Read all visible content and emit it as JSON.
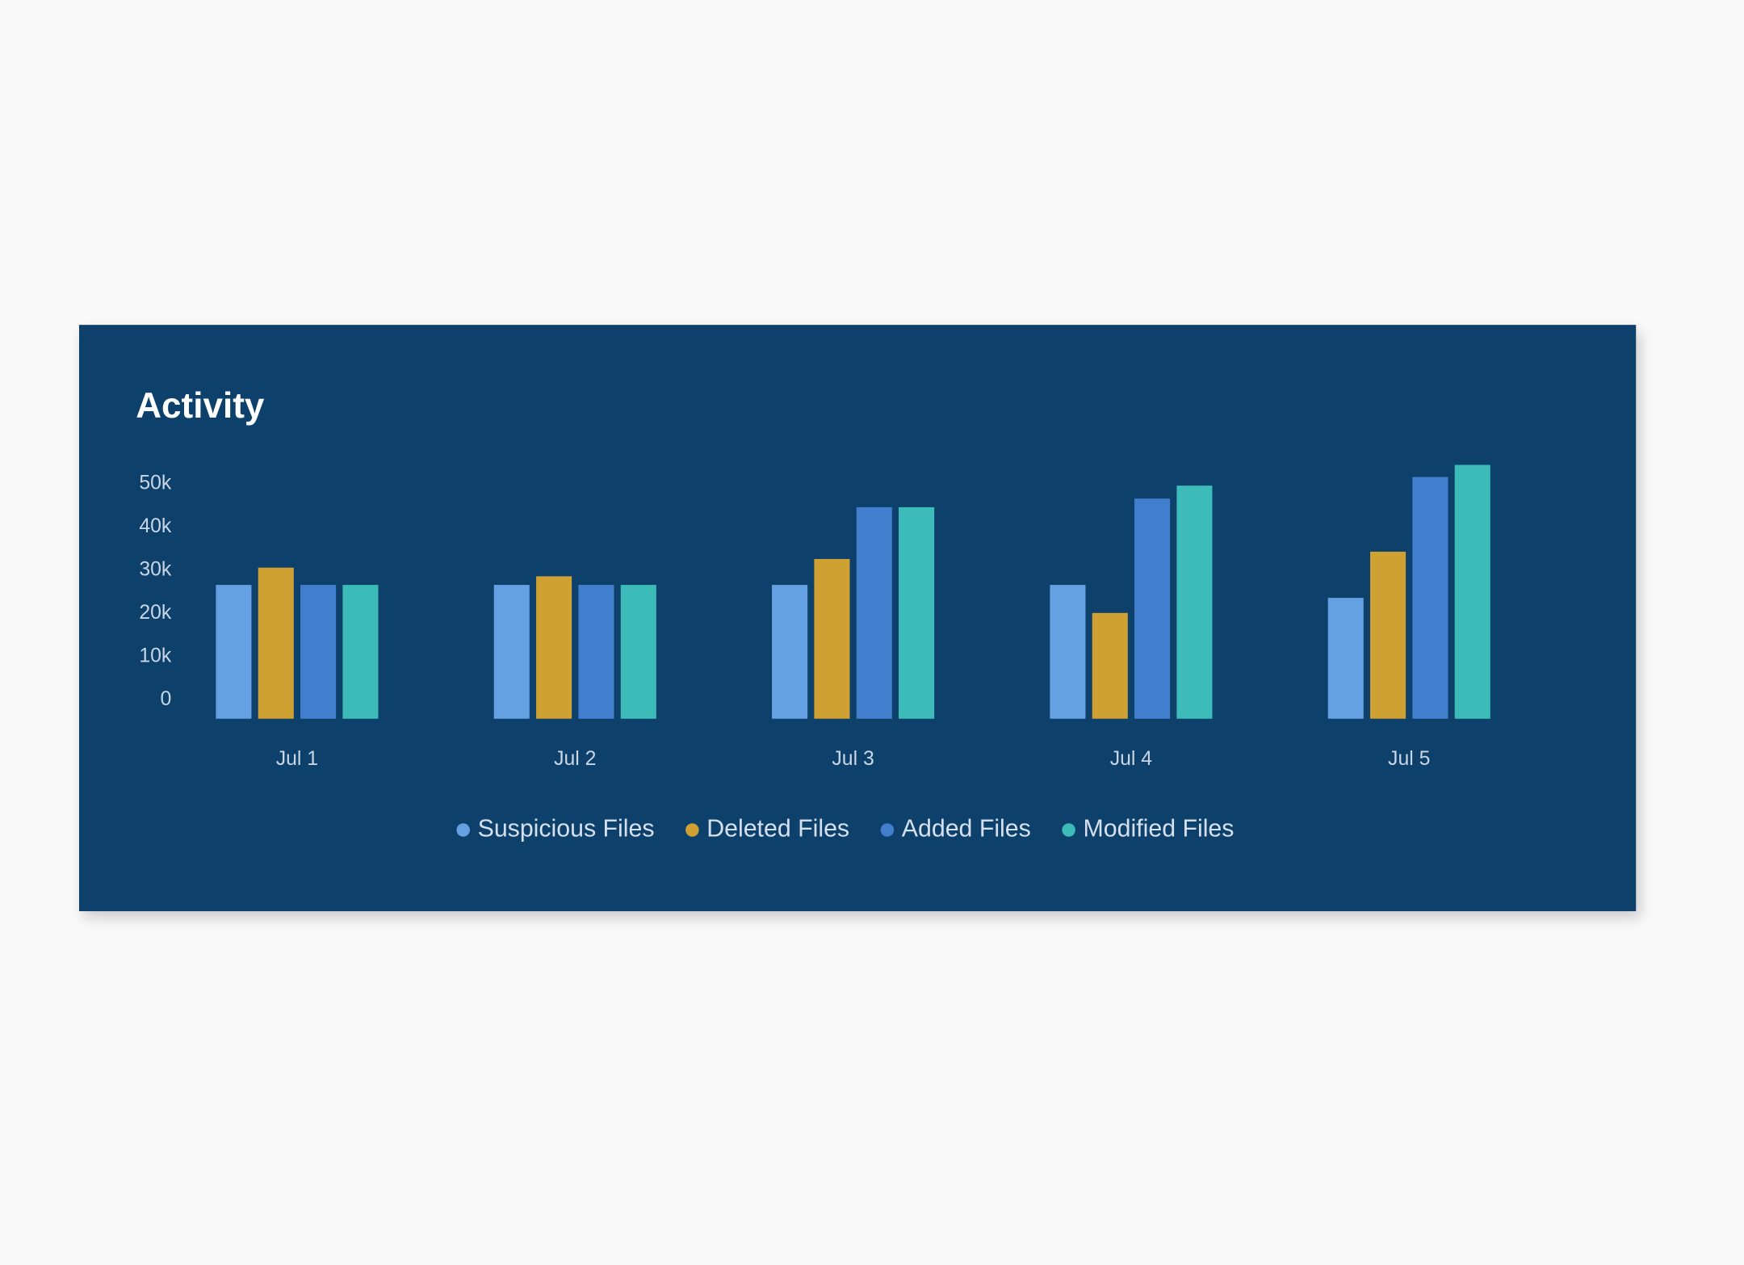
{
  "chart_data": {
    "type": "bar",
    "title": "Activity",
    "categories": [
      "Jul 1",
      "Jul 2",
      "Jul 3",
      "Jul 4",
      "Jul 5"
    ],
    "series": [
      {
        "name": "Suspicious Files",
        "color": "#64a0e2",
        "values": [
          31000,
          31000,
          31000,
          31000,
          28000
        ]
      },
      {
        "name": "Deleted Files",
        "color": "#cfa133",
        "values": [
          35000,
          33000,
          37000,
          24500,
          38700
        ]
      },
      {
        "name": "Added Files",
        "color": "#417fce",
        "values": [
          31000,
          31000,
          49000,
          51000,
          56000
        ]
      },
      {
        "name": "Modified Files",
        "color": "#3dbbb8",
        "values": [
          31000,
          31000,
          49000,
          54000,
          58800
        ]
      }
    ],
    "ylim": [
      0,
      60000
    ],
    "yticks": [
      0,
      {
        "value": 10000,
        "label": "10k"
      },
      {
        "value": 20000,
        "label": "20k"
      },
      {
        "value": 30000,
        "label": "30k"
      },
      {
        "value": 40000,
        "label": "40k"
      },
      {
        "value": 50000,
        "label": "50k"
      }
    ],
    "grid": false,
    "legend": "bottom"
  }
}
